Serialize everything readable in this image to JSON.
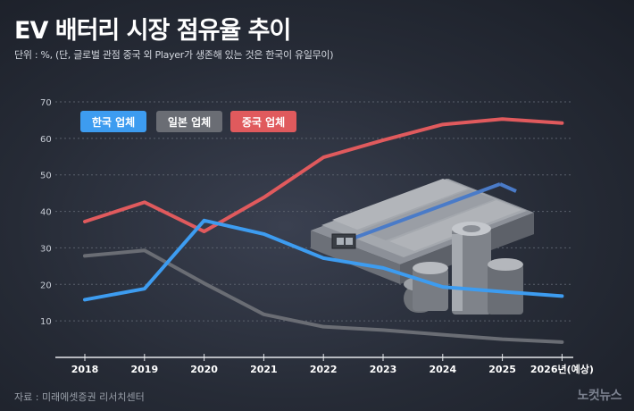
{
  "title": "EV 배터리 시장 점유율 추이",
  "subtitle": "단위 : %, (단, 글로벌 관점 중국 외 Player가 생존해 있는 것은 한국이 유일무이)",
  "source": "자료 : 미래에셋증권 리서치센터",
  "logo": "노컷뉴스",
  "colors": {
    "korea": "#3d9cf0",
    "japan": "#6a6d74",
    "china": "#e05a5d",
    "gridline": "#5a606c"
  },
  "chart_data": {
    "type": "line",
    "title": "EV 배터리 시장 점유율 추이",
    "xlabel": "",
    "ylabel": "",
    "x": [
      "2018",
      "2019",
      "2020",
      "2021",
      "2022",
      "2023",
      "2024",
      "2025",
      "2026년(예상)"
    ],
    "yticks": [
      10,
      20,
      30,
      40,
      50,
      60,
      70
    ],
    "ylim": [
      0,
      70
    ],
    "grid": true,
    "legend_position": "top-left",
    "series": [
      {
        "name": "한국 업체",
        "color": "#3d9cf0",
        "values": [
          15.8,
          18.8,
          37.5,
          33.8,
          27.2,
          24.5,
          19.3,
          18.0,
          16.8
        ]
      },
      {
        "name": "일본 업체",
        "color": "#6a6d74",
        "values": [
          27.8,
          29.3,
          20.3,
          11.8,
          8.4,
          7.5,
          6.2,
          5.0,
          4.2
        ]
      },
      {
        "name": "중국 업체",
        "color": "#e05a5d",
        "values": [
          37.2,
          42.5,
          34.5,
          43.8,
          54.8,
          59.5,
          63.8,
          65.3,
          64.2
        ]
      }
    ]
  }
}
